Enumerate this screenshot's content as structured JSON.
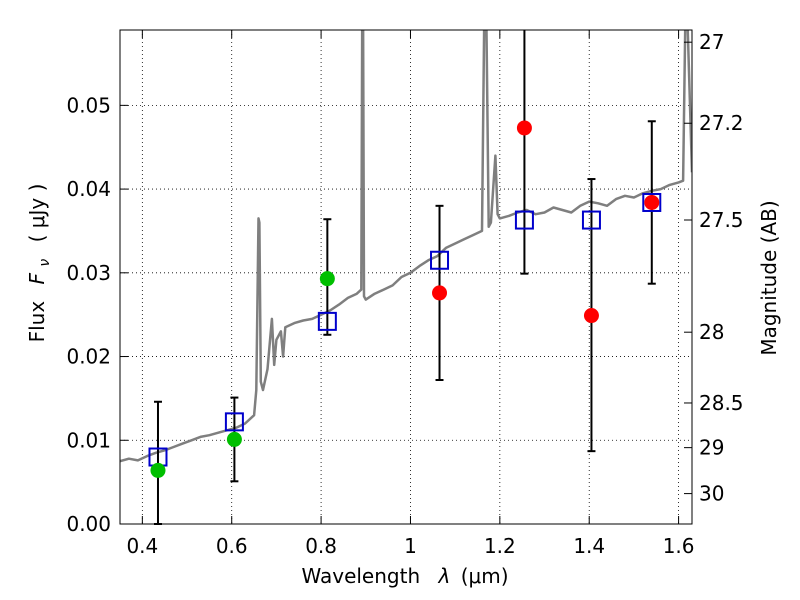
{
  "chart_data": {
    "type": "scatter",
    "xlabel_text": "Wavelength",
    "xlabel_symbol": "λ",
    "xlabel_unit": "(μm)",
    "ylabel_text": "Flux",
    "ylabel_symbol_base": "F",
    "ylabel_symbol_sub": "ν",
    "ylabel_unit": "( μJy )",
    "y2label": "Magnitude (AB)",
    "xlim": [
      0.35,
      1.63
    ],
    "ylim": [
      0.0,
      0.059
    ],
    "grid": true,
    "x_ticks": [
      {
        "value": 0.4,
        "label": "0.4"
      },
      {
        "value": 0.6,
        "label": "0.6"
      },
      {
        "value": 0.8,
        "label": "0.8"
      },
      {
        "value": 1.0,
        "label": "1"
      },
      {
        "value": 1.2,
        "label": "1.2"
      },
      {
        "value": 1.4,
        "label": "1.4"
      },
      {
        "value": 1.6,
        "label": "1.6"
      }
    ],
    "y_ticks": [
      {
        "value": 0.0,
        "label": "0.00"
      },
      {
        "value": 0.01,
        "label": "0.01"
      },
      {
        "value": 0.02,
        "label": "0.02"
      },
      {
        "value": 0.03,
        "label": "0.03"
      },
      {
        "value": 0.04,
        "label": "0.04"
      },
      {
        "value": 0.05,
        "label": "0.05"
      }
    ],
    "y2_ticks": [
      {
        "value": 27,
        "label": "27"
      },
      {
        "value": 27.2,
        "label": "27.2"
      },
      {
        "value": 27.5,
        "label": "27.5"
      },
      {
        "value": 28,
        "label": "28"
      },
      {
        "value": 28.5,
        "label": "28.5"
      },
      {
        "value": 29,
        "label": "29"
      },
      {
        "value": 30,
        "label": "30"
      }
    ],
    "series": [
      {
        "marker": "circle",
        "color": "#ff0000",
        "points": [
          {
            "x": 1.065,
            "y": 0.0276,
            "err_lo": 0.0172,
            "err_hi": 0.038
          },
          {
            "x": 1.255,
            "y": 0.0473,
            "err_lo": 0.0299,
            "err_hi": 0.06
          },
          {
            "x": 1.405,
            "y": 0.0249,
            "err_lo": 0.0087,
            "err_hi": 0.0412
          },
          {
            "x": 1.54,
            "y": 0.0384,
            "err_lo": 0.0287,
            "err_hi": 0.0481
          }
        ]
      },
      {
        "marker": "circle",
        "color": "#00bf00",
        "points": [
          {
            "x": 0.435,
            "y": 0.0064,
            "err_lo": 0.0,
            "err_hi": 0.0146
          },
          {
            "x": 0.606,
            "y": 0.0101,
            "err_lo": 0.0051,
            "err_hi": 0.0151
          },
          {
            "x": 0.814,
            "y": 0.0293,
            "err_lo": 0.0226,
            "err_hi": 0.0364
          }
        ]
      },
      {
        "marker": "open-square",
        "color": "#0000cc",
        "points": [
          {
            "x": 0.435,
            "y": 0.008
          },
          {
            "x": 0.606,
            "y": 0.0122
          },
          {
            "x": 0.814,
            "y": 0.0242
          },
          {
            "x": 1.065,
            "y": 0.0315
          },
          {
            "x": 1.255,
            "y": 0.0363
          },
          {
            "x": 1.405,
            "y": 0.0363
          },
          {
            "x": 1.54,
            "y": 0.0384
          }
        ]
      },
      {
        "marker": "line",
        "color": "#7f7f7f",
        "x": [
          0.35,
          0.37,
          0.39,
          0.41,
          0.43,
          0.45,
          0.47,
          0.49,
          0.51,
          0.53,
          0.55,
          0.57,
          0.59,
          0.61,
          0.63,
          0.65,
          0.655,
          0.66,
          0.662,
          0.665,
          0.67,
          0.68,
          0.69,
          0.695,
          0.7,
          0.71,
          0.715,
          0.72,
          0.74,
          0.76,
          0.78,
          0.8,
          0.82,
          0.84,
          0.86,
          0.88,
          0.89,
          0.892,
          0.894,
          0.896,
          0.9,
          0.92,
          0.94,
          0.96,
          0.98,
          1.0,
          1.02,
          1.04,
          1.06,
          1.08,
          1.1,
          1.12,
          1.14,
          1.16,
          1.165,
          1.17,
          1.175,
          1.18,
          1.19,
          1.195,
          1.2,
          1.22,
          1.24,
          1.26,
          1.28,
          1.3,
          1.32,
          1.34,
          1.36,
          1.38,
          1.4,
          1.42,
          1.44,
          1.46,
          1.48,
          1.5,
          1.52,
          1.54,
          1.56,
          1.58,
          1.6,
          1.61,
          1.615,
          1.62,
          1.63
        ],
        "y": [
          0.0075,
          0.0078,
          0.0076,
          0.0081,
          0.0085,
          0.0088,
          0.0092,
          0.0096,
          0.01,
          0.0104,
          0.0106,
          0.0109,
          0.0112,
          0.0115,
          0.012,
          0.013,
          0.016,
          0.0365,
          0.036,
          0.017,
          0.016,
          0.0185,
          0.0245,
          0.019,
          0.022,
          0.023,
          0.02,
          0.0235,
          0.024,
          0.0243,
          0.0245,
          0.025,
          0.0255,
          0.0262,
          0.027,
          0.0275,
          0.028,
          0.06,
          0.06,
          0.0272,
          0.0268,
          0.0275,
          0.028,
          0.0285,
          0.0295,
          0.03,
          0.0308,
          0.0315,
          0.032,
          0.033,
          0.0335,
          0.034,
          0.0345,
          0.035,
          0.06,
          0.06,
          0.0355,
          0.036,
          0.044,
          0.037,
          0.0365,
          0.0368,
          0.0372,
          0.0375,
          0.037,
          0.0372,
          0.0378,
          0.0375,
          0.0372,
          0.038,
          0.0385,
          0.0383,
          0.038,
          0.0388,
          0.0392,
          0.039,
          0.0395,
          0.0398,
          0.04,
          0.0405,
          0.0408,
          0.041,
          0.06,
          0.06,
          0.042
        ]
      }
    ]
  }
}
